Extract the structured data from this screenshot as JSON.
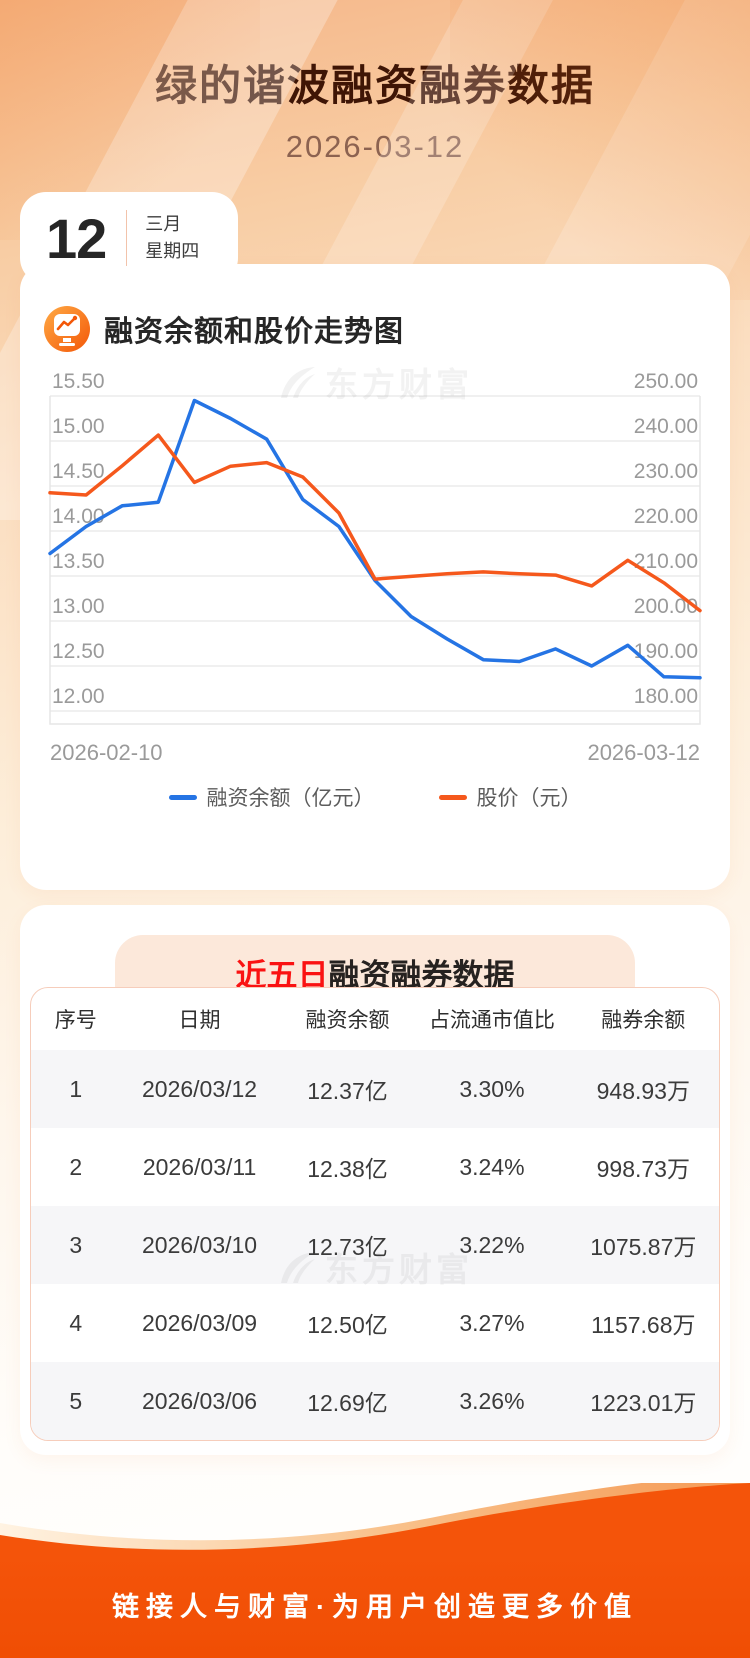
{
  "header": {
    "title": "绿的谐波融资融券数据",
    "date": "2026-03-12"
  },
  "date_card": {
    "day": "12",
    "month": "三月",
    "weekday": "星期四"
  },
  "chart_section": {
    "title": "融资余额和股价走势图",
    "watermark": "东方财富",
    "legend": [
      {
        "label": "融资余额（亿元）",
        "color": "#2574e4"
      },
      {
        "label": "股价（元）",
        "color": "#f5581c"
      }
    ]
  },
  "chart_data": {
    "type": "line",
    "title": "融资余额和股价走势图",
    "x_axis": {
      "start_label": "2026-02-10",
      "end_label": "2026-03-12"
    },
    "left_axis": {
      "label": "融资余额（亿元）",
      "min": 12.0,
      "max": 15.5,
      "ticks": [
        15.5,
        15.0,
        14.5,
        14.0,
        13.5,
        13.0,
        12.5,
        12.0
      ]
    },
    "right_axis": {
      "label": "股价（元）",
      "min": 180,
      "max": 250,
      "ticks": [
        250,
        240,
        230,
        220,
        210,
        200,
        190,
        180
      ]
    },
    "grid": true,
    "legend_position": "bottom",
    "series": [
      {
        "name": "融资余额（亿元）",
        "axis": "left",
        "color": "#2574e4",
        "values": [
          13.75,
          14.05,
          14.28,
          14.32,
          15.45,
          15.25,
          15.02,
          14.35,
          14.05,
          13.45,
          13.05,
          12.8,
          12.57,
          12.55,
          12.69,
          12.5,
          12.73,
          12.38,
          12.37
        ]
      },
      {
        "name": "股价（元）",
        "axis": "right",
        "color": "#f5581c",
        "values": [
          228.5,
          228.0,
          234.5,
          241.3,
          230.8,
          234.4,
          235.2,
          232.0,
          224.0,
          209.3,
          209.9,
          210.5,
          210.9,
          210.5,
          210.2,
          207.8,
          213.5,
          208.5,
          202.3
        ]
      }
    ]
  },
  "table_section": {
    "title_highlight": "近五日",
    "title_rest": "融资融券数据",
    "watermark": "东方财富",
    "columns": [
      "序号",
      "日期",
      "融资余额",
      "占流通市值比",
      "融券余额"
    ],
    "rows": [
      [
        "1",
        "2026/03/12",
        "12.37亿",
        "3.30%",
        "948.93万"
      ],
      [
        "2",
        "2026/03/11",
        "12.38亿",
        "3.24%",
        "998.73万"
      ],
      [
        "3",
        "2026/03/10",
        "12.73亿",
        "3.22%",
        "1075.87万"
      ],
      [
        "4",
        "2026/03/09",
        "12.50亿",
        "3.27%",
        "1157.68万"
      ],
      [
        "5",
        "2026/03/06",
        "12.69亿",
        "3.26%",
        "1223.01万"
      ]
    ]
  },
  "footer": {
    "slogan": "链接人与财富·为用户创造更多价值"
  },
  "colors": {
    "accent_orange": "#f4540a",
    "line_blue": "#2574e4",
    "line_orange": "#f5581c",
    "title_brown": "#3f1505",
    "highlight_red": "#fa1212",
    "axis_gray": "#9a9a9a",
    "banner_bg": "#fce8da",
    "row_alt_bg": "#f6f6f8"
  }
}
